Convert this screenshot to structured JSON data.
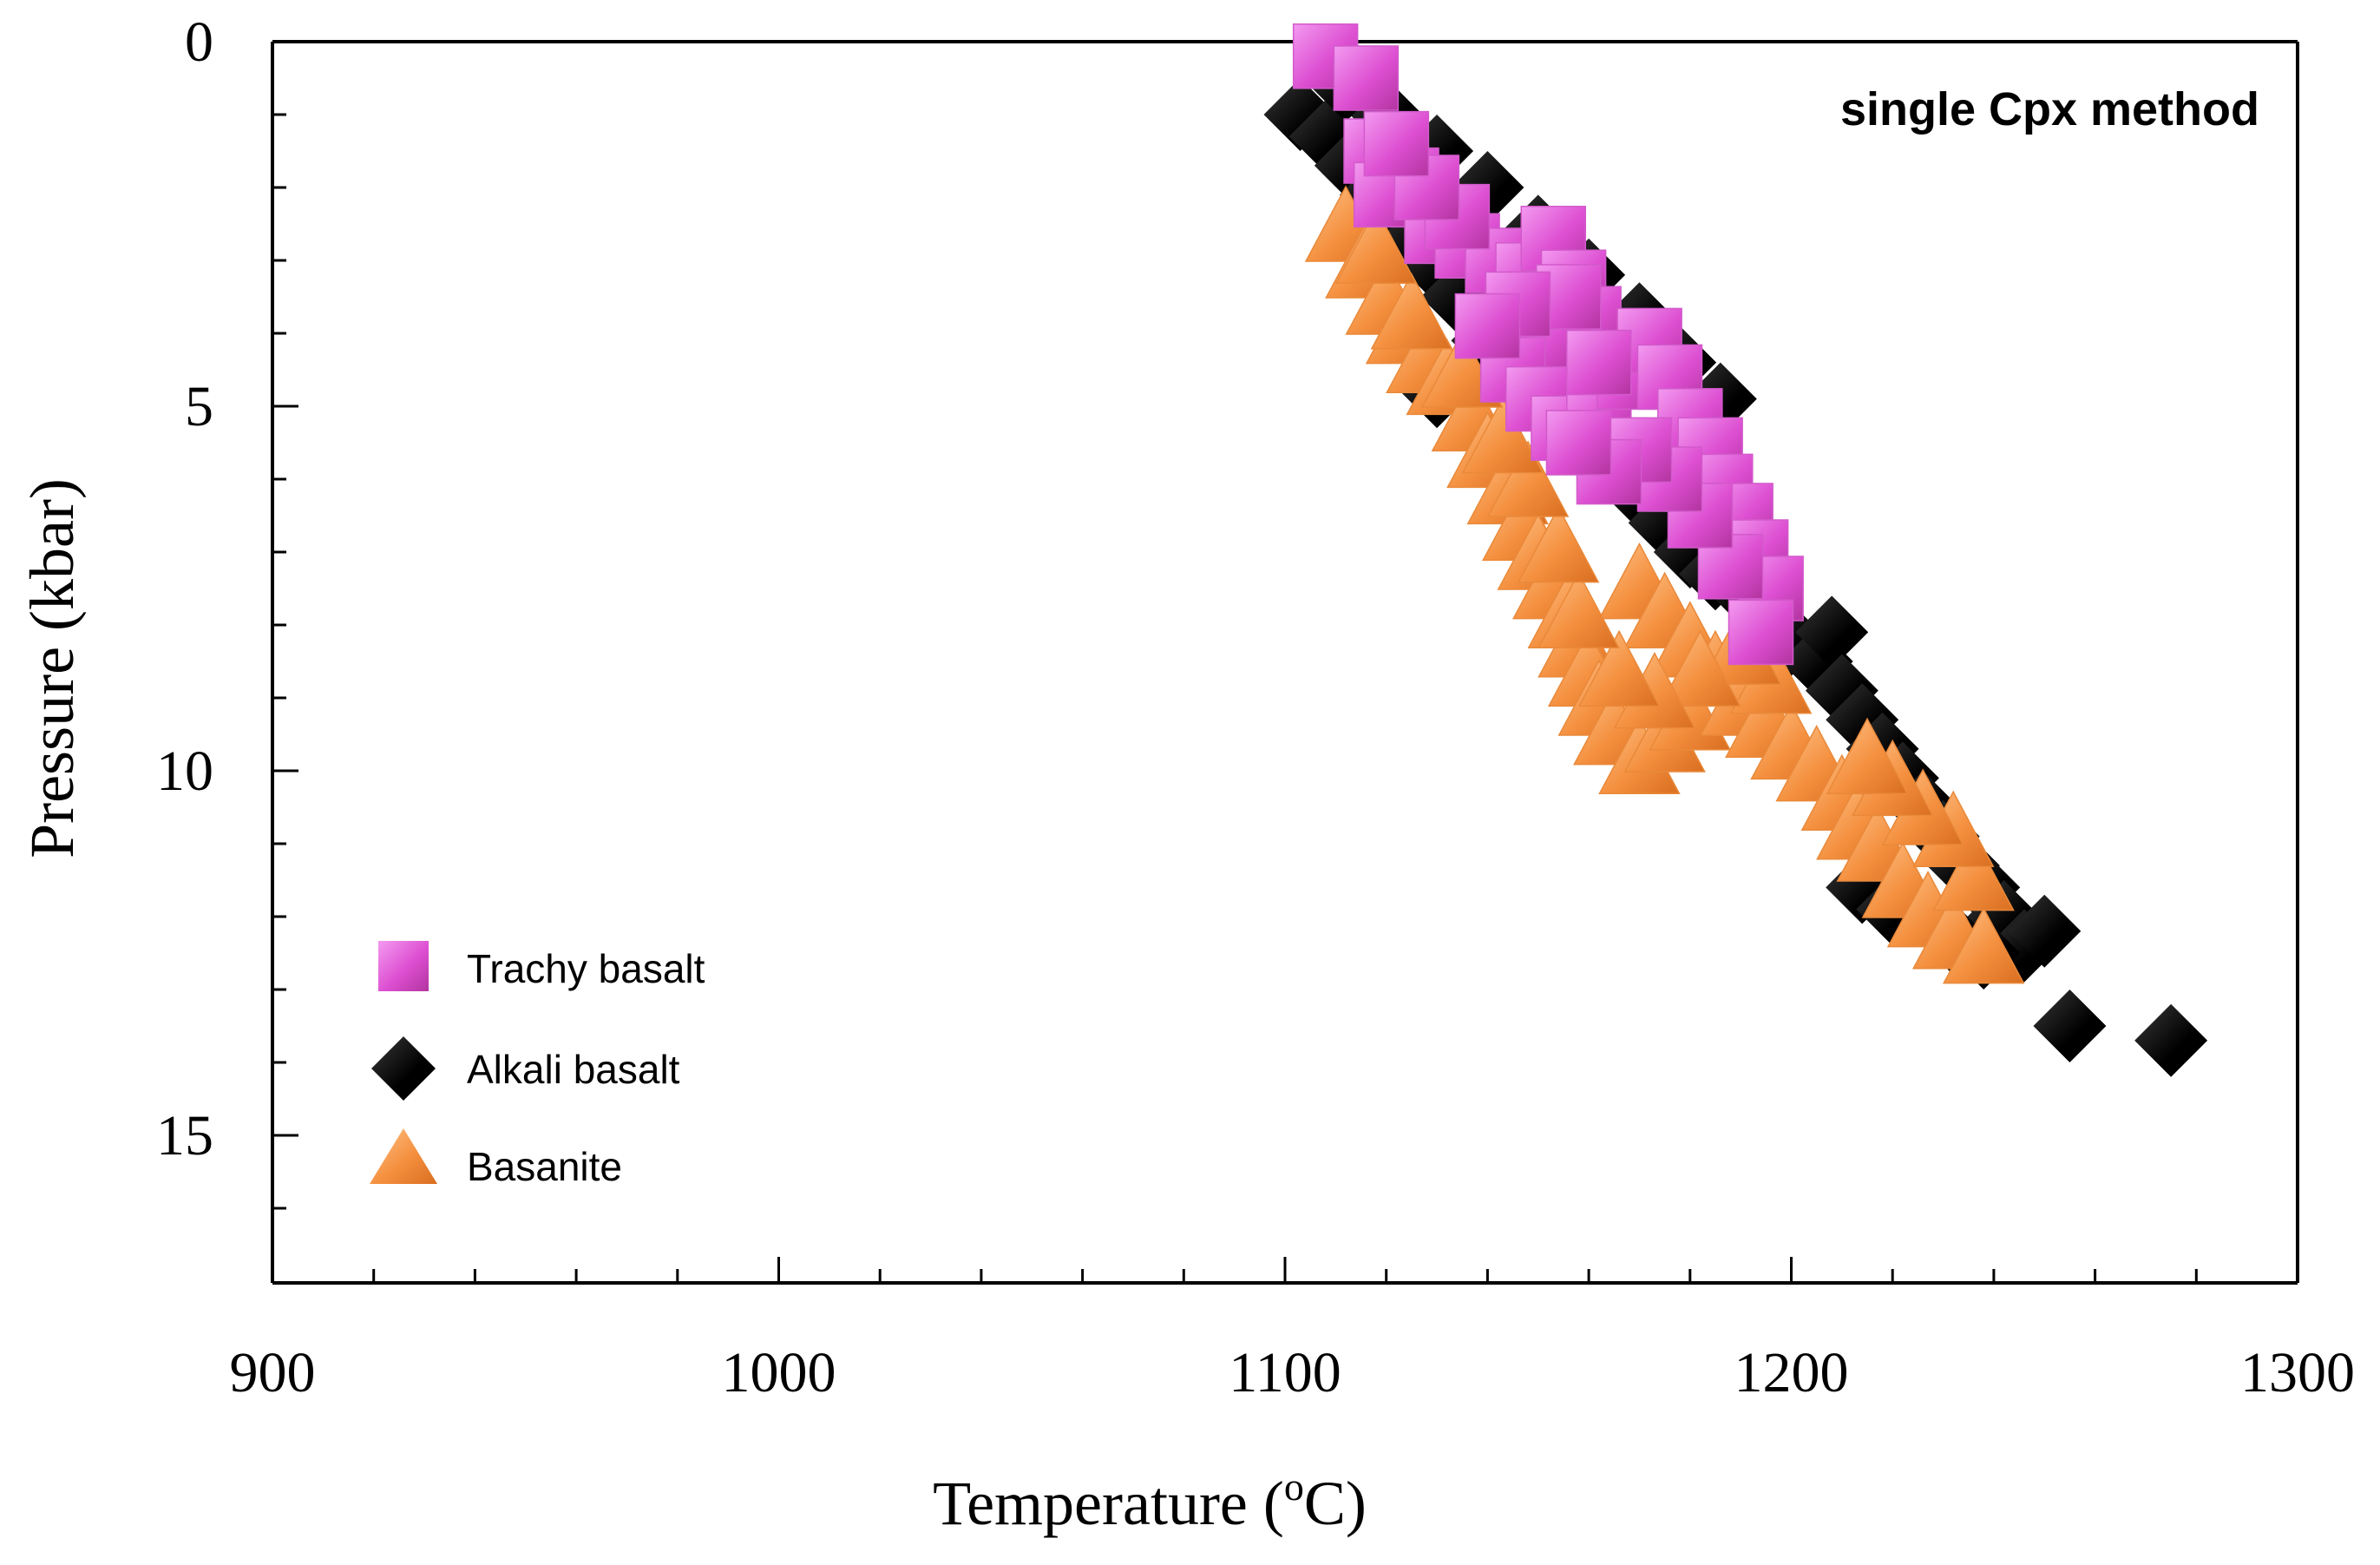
{
  "chart_data": {
    "type": "scatter",
    "title": "single Cpx method",
    "xlabel": "Temperature (",
    "xlabel_sup": "o",
    "xlabel_unit": "C)",
    "ylabel": "Pressure (kbar)",
    "xlim": [
      900,
      1300
    ],
    "ylim": [
      0,
      17
    ],
    "y_inverted": true,
    "x_ticks": [
      900,
      1000,
      1100,
      1200,
      1300
    ],
    "x_tick_labels": [
      "900",
      "1000",
      "1100",
      "1200",
      "1300"
    ],
    "x_minor_step": 20,
    "y_ticks": [
      0,
      5,
      10,
      15
    ],
    "y_tick_labels": [
      "0",
      "5",
      "10",
      "15"
    ],
    "y_minor_step": 1,
    "legend_position": "bottom-left",
    "series": [
      {
        "name": "Alkali basalt",
        "marker": "diamond",
        "color": "#000000",
        "points": [
          [
            1103,
            1.0
          ],
          [
            1108,
            1.3
          ],
          [
            1113,
            1.7
          ],
          [
            1118,
            2.1
          ],
          [
            1122,
            2.4
          ],
          [
            1126,
            2.7
          ],
          [
            1130,
            3.1
          ],
          [
            1134,
            3.5
          ],
          [
            1130,
            4.8
          ],
          [
            1137,
            4.5
          ],
          [
            1140,
            4.1
          ],
          [
            1144,
            3.7
          ],
          [
            1149,
            4.2
          ],
          [
            1153,
            4.6
          ],
          [
            1158,
            5.0
          ],
          [
            1162,
            5.4
          ],
          [
            1166,
            5.8
          ],
          [
            1170,
            6.2
          ],
          [
            1175,
            6.6
          ],
          [
            1180,
            7.0
          ],
          [
            1185,
            7.3
          ],
          [
            1190,
            7.5
          ],
          [
            1195,
            7.9
          ],
          [
            1200,
            8.2
          ],
          [
            1205,
            8.5
          ],
          [
            1208,
            8.1
          ],
          [
            1210,
            8.9
          ],
          [
            1214,
            9.3
          ],
          [
            1218,
            9.7
          ],
          [
            1222,
            10.1
          ],
          [
            1226,
            10.5
          ],
          [
            1230,
            10.9
          ],
          [
            1234,
            11.3
          ],
          [
            1238,
            11.6
          ],
          [
            1242,
            12.0
          ],
          [
            1246,
            12.4
          ],
          [
            1250,
            12.2
          ],
          [
            1214,
            11.6
          ],
          [
            1220,
            11.9
          ],
          [
            1232,
            12.3
          ],
          [
            1238,
            12.5
          ],
          [
            1255,
            13.5
          ],
          [
            1275,
            13.7
          ],
          [
            1186,
            4.9
          ],
          [
            1178,
            4.4
          ],
          [
            1170,
            3.8
          ],
          [
            1160,
            3.2
          ],
          [
            1150,
            2.6
          ],
          [
            1140,
            2.0
          ],
          [
            1130,
            1.5
          ],
          [
            1120,
            1.0
          ],
          [
            1112,
            0.6
          ]
        ]
      },
      {
        "name": "Basanite",
        "marker": "triangle",
        "color": "#f4903f",
        "points": [
          [
            1112,
            2.5
          ],
          [
            1116,
            3.0
          ],
          [
            1120,
            3.5
          ],
          [
            1124,
            3.9
          ],
          [
            1128,
            4.3
          ],
          [
            1132,
            4.6
          ],
          [
            1137,
            5.1
          ],
          [
            1140,
            5.6
          ],
          [
            1144,
            6.1
          ],
          [
            1147,
            6.6
          ],
          [
            1150,
            7.0
          ],
          [
            1153,
            7.4
          ],
          [
            1156,
            7.8
          ],
          [
            1158,
            8.2
          ],
          [
            1160,
            8.6
          ],
          [
            1162,
            9.0
          ],
          [
            1165,
            9.4
          ],
          [
            1170,
            9.8
          ],
          [
            1175,
            9.5
          ],
          [
            1180,
            9.2
          ],
          [
            1170,
            7.4
          ],
          [
            1175,
            7.8
          ],
          [
            1180,
            8.2
          ],
          [
            1185,
            8.6
          ],
          [
            1190,
            9.0
          ],
          [
            1195,
            9.3
          ],
          [
            1200,
            9.6
          ],
          [
            1205,
            9.9
          ],
          [
            1210,
            10.3
          ],
          [
            1213,
            10.7
          ],
          [
            1217,
            11.0
          ],
          [
            1222,
            11.5
          ],
          [
            1227,
            11.9
          ],
          [
            1232,
            12.2
          ],
          [
            1238,
            12.4
          ],
          [
            1236,
            11.4
          ],
          [
            1232,
            10.8
          ],
          [
            1226,
            10.5
          ],
          [
            1220,
            10.1
          ],
          [
            1215,
            9.8
          ],
          [
            1196,
            8.7
          ],
          [
            1190,
            8.3
          ],
          [
            1182,
            8.6
          ],
          [
            1173,
            8.9
          ],
          [
            1166,
            8.6
          ],
          [
            1158,
            7.8
          ],
          [
            1154,
            6.9
          ],
          [
            1148,
            6.0
          ],
          [
            1143,
            5.4
          ],
          [
            1135,
            4.5
          ],
          [
            1125,
            3.7
          ],
          [
            1118,
            2.8
          ]
        ]
      },
      {
        "name": "Trachy basalt",
        "marker": "square",
        "color": "#dd4fd2",
        "points": [
          [
            1108,
            0.2
          ],
          [
            1116,
            0.5
          ],
          [
            1118,
            1.5
          ],
          [
            1124,
            1.9
          ],
          [
            1120,
            2.1
          ],
          [
            1130,
            2.6
          ],
          [
            1136,
            2.8
          ],
          [
            1142,
            3.0
          ],
          [
            1148,
            3.2
          ],
          [
            1153,
            2.7
          ],
          [
            1157,
            3.3
          ],
          [
            1160,
            3.8
          ],
          [
            1155,
            4.0
          ],
          [
            1150,
            4.2
          ],
          [
            1145,
            4.5
          ],
          [
            1150,
            4.9
          ],
          [
            1155,
            5.3
          ],
          [
            1162,
            5.1
          ],
          [
            1168,
            4.6
          ],
          [
            1172,
            4.1
          ],
          [
            1176,
            4.6
          ],
          [
            1180,
            5.2
          ],
          [
            1184,
            5.6
          ],
          [
            1186,
            6.1
          ],
          [
            1190,
            6.5
          ],
          [
            1193,
            7.0
          ],
          [
            1196,
            7.5
          ],
          [
            1194,
            8.1
          ],
          [
            1188,
            7.2
          ],
          [
            1182,
            6.5
          ],
          [
            1176,
            6.0
          ],
          [
            1170,
            5.6
          ],
          [
            1164,
            5.9
          ],
          [
            1158,
            5.5
          ],
          [
            1162,
            4.4
          ],
          [
            1156,
            3.5
          ],
          [
            1146,
            3.6
          ],
          [
            1140,
            3.9
          ],
          [
            1134,
            2.4
          ],
          [
            1128,
            2.0
          ],
          [
            1122,
            1.4
          ]
        ]
      }
    ]
  }
}
